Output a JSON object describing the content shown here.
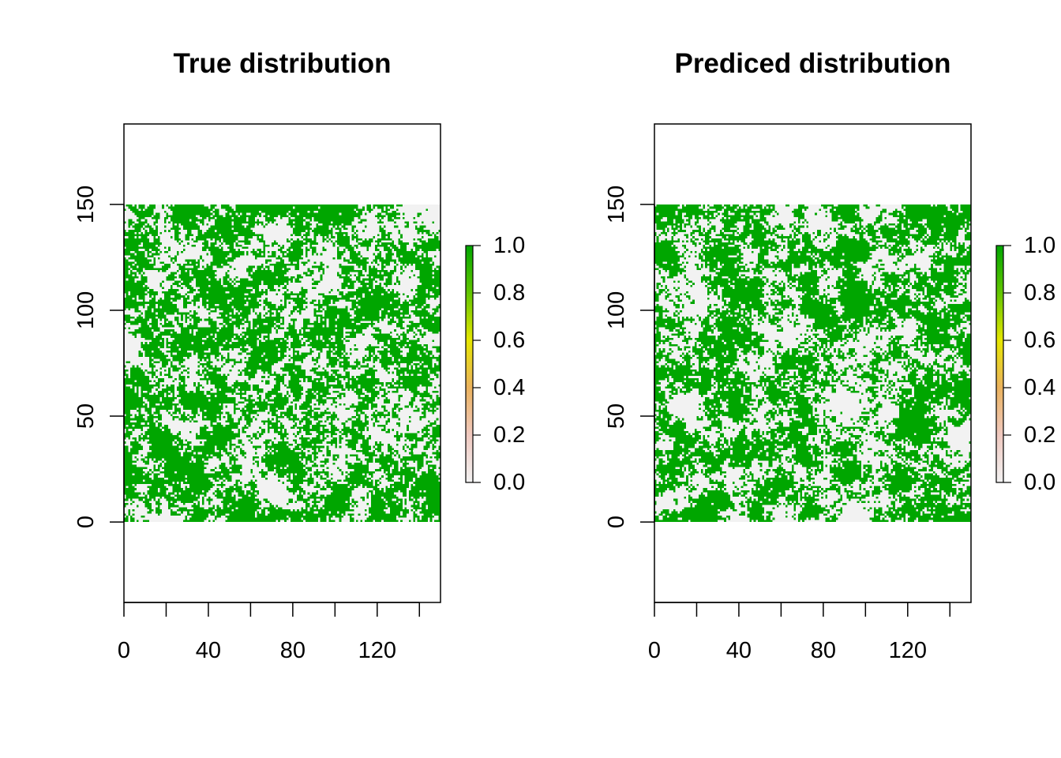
{
  "chart_data": [
    {
      "type": "heatmap",
      "title": "True distribution",
      "xlim": [
        0,
        150
      ],
      "ylim": [
        -38,
        188
      ],
      "raster_extent": {
        "x": [
          0,
          150
        ],
        "y": [
          0,
          150
        ]
      },
      "x_ticks": [
        0,
        20,
        40,
        60,
        80,
        100,
        120,
        140
      ],
      "x_tick_labels": [
        "0",
        "",
        "40",
        "",
        "80",
        "",
        "120",
        ""
      ],
      "y_ticks": [
        0,
        50,
        100,
        150
      ],
      "y_tick_labels": [
        "0",
        "50",
        "100",
        "150"
      ],
      "grid": false,
      "legend_position": "right",
      "colorbar": {
        "range": [
          0,
          1
        ],
        "ticks": [
          0,
          0.2,
          0.4,
          0.6,
          0.8,
          1.0
        ],
        "tick_labels": [
          "0.0",
          "0.2",
          "0.4",
          "0.6",
          "0.8",
          "1.0"
        ]
      },
      "values_present": [
        0,
        1
      ],
      "seed": 7,
      "fill_fraction": 0.58
    },
    {
      "type": "heatmap",
      "title": "Prediced distribution",
      "xlim": [
        0,
        150
      ],
      "ylim": [
        -38,
        188
      ],
      "raster_extent": {
        "x": [
          0,
          150
        ],
        "y": [
          0,
          150
        ]
      },
      "x_ticks": [
        0,
        20,
        40,
        60,
        80,
        100,
        120,
        140
      ],
      "x_tick_labels": [
        "0",
        "",
        "40",
        "",
        "80",
        "",
        "120",
        ""
      ],
      "y_ticks": [
        0,
        50,
        100,
        150
      ],
      "y_tick_labels": [
        "0",
        "50",
        "100",
        "150"
      ],
      "grid": false,
      "legend_position": "right",
      "colorbar": {
        "range": [
          0,
          1
        ],
        "ticks": [
          0,
          0.2,
          0.4,
          0.6,
          0.8,
          1.0
        ],
        "tick_labels": [
          "0.0",
          "0.2",
          "0.4",
          "0.6",
          "0.8",
          "1.0"
        ]
      },
      "values_present": [
        0,
        1
      ],
      "seed": 19,
      "fill_fraction": 0.56
    }
  ],
  "colors": {
    "presence": "#00a600",
    "absence": "#f2f2f2",
    "palette": [
      "#f2f2f2",
      "#f0c9c0",
      "#ebb25e",
      "#e6e600",
      "#63c600",
      "#00a600"
    ]
  }
}
